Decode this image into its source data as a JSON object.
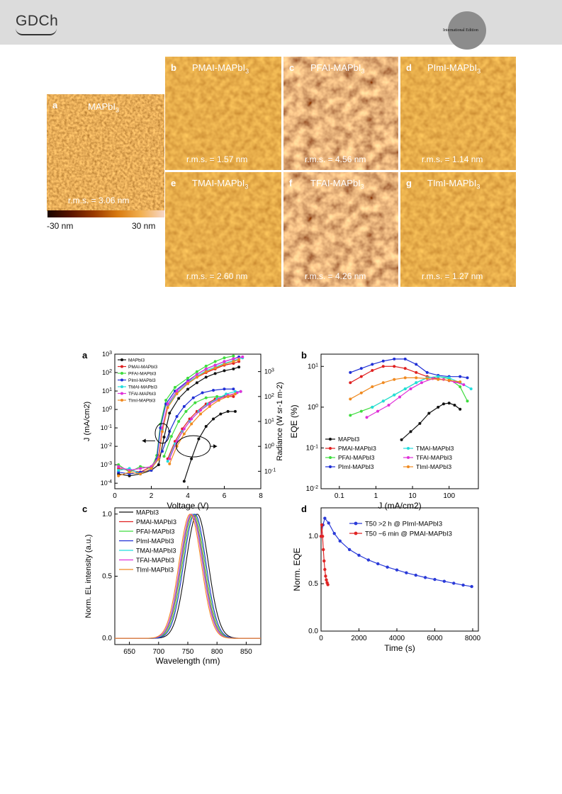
{
  "header": {
    "publisher_logo": "GDCh",
    "edition_badge": "International Edition"
  },
  "afm": {
    "panels": [
      {
        "letter": "a",
        "title": "MAPbI",
        "sub": "3",
        "rms": "r.m.s. = 3.06 nm"
      },
      {
        "letter": "b",
        "title": "PMAI-MAPbI",
        "sub": "3",
        "rms": "r.m.s. = 1.57 nm"
      },
      {
        "letter": "c",
        "title": "PFAI-MAPbI",
        "sub": "3",
        "rms": "r.m.s. = 4.56 nm"
      },
      {
        "letter": "d",
        "title": "PImI-MAPbI",
        "sub": "3",
        "rms": "r.m.s. = 1.14 nm"
      },
      {
        "letter": "e",
        "title": "TMAI-MAPbI",
        "sub": "3",
        "rms": "r.m.s. = 2.60 nm"
      },
      {
        "letter": "f",
        "title": "TFAI-MAPbI",
        "sub": "3",
        "rms": "r.m.s. = 4.26 nm"
      },
      {
        "letter": "g",
        "title": "TImI-MAPbI",
        "sub": "3",
        "rms": "r.m.s. = 1.27 nm"
      }
    ],
    "colorbar": {
      "min_label": "-30 nm",
      "max_label": "30 nm"
    }
  },
  "colors": {
    "MAPbI3": "#111111",
    "PMAI-MAPbI3": "#e02020",
    "PFAI-MAPbI3": "#3ddc3d",
    "PImI-MAPbI3": "#1f2fd6",
    "TMAI-MAPbI3": "#22dddd",
    "TFAI-MAPbI3": "#e030d8",
    "TImI-MAPbI3": "#f08a20"
  },
  "chart_data": [
    {
      "panel": "a",
      "type": "line",
      "xlabel": "Voltage (V)",
      "ylabel": "J (mA/cm2)",
      "y2label": "Radiance (W sr-1 m-2)",
      "xlim": [
        0,
        8
      ],
      "ylim_log": [
        -4.3,
        3
      ],
      "y2lim_log": [
        -1.7,
        3.7
      ],
      "xticks": [
        "0",
        "2",
        "4",
        "6",
        "8"
      ],
      "yticks": [
        "10^-4",
        "10^-3",
        "10^-2",
        "10^-1",
        "10^0",
        "10^1",
        "10^2",
        "10^3"
      ],
      "y2ticks": [
        "10^-1",
        "10^0",
        "10^1",
        "10^2",
        "10^3"
      ],
      "legend": [
        "MAPbI3",
        "PMAI-MAPbI3",
        "PFAI-MAPbI3",
        "PImI-MAPbI3",
        "TMAI-MAPbI3",
        "TFAI-MAPbI3",
        "TImI-MAPbI3"
      ],
      "current_series": [
        {
          "name": "MAPbI3",
          "x": [
            0.2,
            0.8,
            1.4,
            2.0,
            2.4,
            2.7,
            3.0,
            3.5,
            4.0,
            4.5,
            5.0,
            5.5,
            6.0,
            6.5,
            6.8
          ],
          "log_y": [
            -3.5,
            -3.6,
            -3.5,
            -3.3,
            -3.0,
            -1.5,
            -0.2,
            0.6,
            1.1,
            1.45,
            1.75,
            1.95,
            2.1,
            2.2,
            2.3
          ]
        },
        {
          "name": "PMAI-MAPbI3",
          "x": [
            0.2,
            0.8,
            1.4,
            2.0,
            2.4,
            2.6,
            2.9,
            3.4,
            4.0,
            4.5,
            5.0,
            5.5,
            6.0,
            6.5,
            6.8
          ],
          "log_y": [
            -3.2,
            -3.3,
            -3.4,
            -3.1,
            -2.5,
            -1.0,
            0.2,
            0.9,
            1.4,
            1.75,
            2.0,
            2.2,
            2.4,
            2.5,
            2.6
          ]
        },
        {
          "name": "PFAI-MAPbI3",
          "x": [
            0.2,
            0.8,
            1.4,
            2.0,
            2.3,
            2.5,
            2.8,
            3.3,
            4.0,
            4.5,
            5.0,
            5.5,
            6.0,
            6.5
          ],
          "log_y": [
            -3.0,
            -3.4,
            -3.1,
            -3.2,
            -2.5,
            -0.8,
            0.5,
            1.2,
            1.7,
            2.05,
            2.35,
            2.6,
            2.8,
            2.9
          ]
        },
        {
          "name": "PImI-MAPbI3",
          "x": [
            0.2,
            0.8,
            1.4,
            2.0,
            2.3,
            2.5,
            2.8,
            3.3,
            4.0,
            4.5,
            5.0,
            5.5,
            6.0,
            6.5,
            6.8
          ],
          "log_y": [
            -3.4,
            -3.5,
            -3.4,
            -3.3,
            -2.7,
            -1.0,
            0.3,
            1.0,
            1.55,
            1.9,
            2.2,
            2.4,
            2.6,
            2.75,
            2.85
          ]
        },
        {
          "name": "TMAI-MAPbI3",
          "x": [
            0.2,
            0.8,
            1.4,
            2.0,
            2.4,
            2.6,
            2.9,
            3.4,
            4.0,
            4.5,
            5.0,
            5.5,
            6.0,
            6.5,
            7.0
          ],
          "log_y": [
            -3.3,
            -3.2,
            -3.5,
            -3.2,
            -2.6,
            -1.1,
            0.2,
            0.9,
            1.45,
            1.8,
            2.1,
            2.3,
            2.5,
            2.65,
            2.8
          ]
        },
        {
          "name": "TFAI-MAPbI3",
          "x": [
            0.2,
            0.8,
            1.4,
            2.0,
            2.4,
            2.6,
            2.9,
            3.4,
            4.0,
            4.5,
            5.0,
            5.5,
            6.0,
            6.5,
            7.0
          ],
          "log_y": [
            -3.1,
            -3.3,
            -3.2,
            -3.1,
            -2.6,
            -1.0,
            0.3,
            1.0,
            1.5,
            1.9,
            2.2,
            2.4,
            2.6,
            2.75,
            2.85
          ]
        },
        {
          "name": "TImI-MAPbI3",
          "x": [
            0.2,
            0.8,
            1.4,
            2.0,
            2.4,
            2.6,
            2.9,
            3.4,
            4.0,
            4.5,
            5.0,
            5.5,
            6.0,
            6.5,
            6.8
          ],
          "log_y": [
            -3.6,
            -3.4,
            -3.5,
            -3.2,
            -2.7,
            -1.2,
            0.1,
            0.85,
            1.4,
            1.75,
            2.05,
            2.25,
            2.45,
            2.6,
            2.7
          ]
        }
      ],
      "radiance_series": [
        {
          "name": "MAPbI3",
          "x": [
            3.8,
            4.2,
            4.6,
            5.0,
            5.4,
            5.8,
            6.2,
            6.6
          ],
          "log_y": [
            -1.4,
            -0.5,
            0.3,
            0.8,
            1.1,
            1.3,
            1.4,
            1.4
          ]
        },
        {
          "name": "PMAI-MAPbI3",
          "x": [
            2.9,
            3.3,
            3.7,
            4.1,
            4.5,
            5.0,
            5.5,
            6.0,
            6.5
          ],
          "log_y": [
            -0.5,
            0.2,
            0.7,
            1.1,
            1.4,
            1.7,
            1.9,
            2.0,
            2.0
          ]
        },
        {
          "name": "PFAI-MAPbI3",
          "x": [
            2.7,
            3.1,
            3.5,
            3.9,
            4.4,
            5.0,
            5.6,
            6.2
          ],
          "log_y": [
            -0.4,
            0.4,
            1.0,
            1.4,
            1.75,
            1.95,
            2.0,
            2.0
          ]
        },
        {
          "name": "PImI-MAPbI3",
          "x": [
            2.6,
            3.0,
            3.4,
            3.8,
            4.3,
            4.8,
            5.4,
            6.0,
            6.5
          ],
          "log_y": [
            -0.2,
            0.6,
            1.2,
            1.6,
            1.95,
            2.15,
            2.25,
            2.3,
            2.3
          ]
        },
        {
          "name": "TMAI-MAPbI3",
          "x": [
            2.9,
            3.3,
            3.7,
            4.1,
            4.6,
            5.1,
            5.6,
            6.1,
            6.6,
            6.9
          ],
          "log_y": [
            -0.6,
            0.1,
            0.6,
            1.0,
            1.4,
            1.7,
            1.9,
            2.1,
            2.2,
            2.2
          ]
        },
        {
          "name": "TFAI-MAPbI3",
          "x": [
            3.0,
            3.4,
            3.8,
            4.2,
            4.7,
            5.2,
            5.7,
            6.2,
            6.7,
            6.9
          ],
          "log_y": [
            -0.5,
            0.2,
            0.7,
            1.1,
            1.45,
            1.7,
            1.9,
            2.05,
            2.15,
            2.2
          ]
        },
        {
          "name": "TImI-MAPbI3",
          "x": [
            3.0,
            3.4,
            3.8,
            4.2,
            4.7,
            5.2,
            5.7,
            6.2,
            6.6
          ],
          "log_y": [
            -0.7,
            0.0,
            0.5,
            0.9,
            1.3,
            1.6,
            1.85,
            2.0,
            2.1
          ]
        }
      ]
    },
    {
      "panel": "b",
      "type": "line",
      "xlabel": "J (mA/cm2)",
      "ylabel": "EQE (%)",
      "xlim_log": [
        -1.5,
        2.8
      ],
      "ylim_log": [
        -2,
        1.3
      ],
      "xticks": [
        "0.1",
        "1",
        "10",
        "100"
      ],
      "yticks": [
        "10^-2",
        "10^-1",
        "10^0",
        "10^1"
      ],
      "legend": [
        "MAPbI3",
        "PMAI-MAPbI3",
        "PFAI-MAPbI3",
        "PImI-MAPbI3",
        "TMAI-MAPbI3",
        "TFAI-MAPbI3",
        "TImI-MAPbI3"
      ],
      "series": [
        {
          "name": "MAPbI3",
          "log_x": [
            0.7,
            0.95,
            1.2,
            1.45,
            1.7,
            1.85,
            2.0,
            2.15,
            2.3
          ],
          "log_y": [
            -0.8,
            -0.6,
            -0.4,
            -0.15,
            0.0,
            0.08,
            0.1,
            0.05,
            -0.05
          ]
        },
        {
          "name": "PMAI-MAPbI3",
          "log_x": [
            -0.7,
            -0.4,
            -0.1,
            0.2,
            0.5,
            0.8,
            1.1,
            1.4,
            1.7,
            2.0,
            2.3
          ],
          "log_y": [
            0.6,
            0.75,
            0.9,
            1.0,
            1.0,
            0.95,
            0.85,
            0.75,
            0.7,
            0.65,
            0.6
          ]
        },
        {
          "name": "PFAI-MAPbI3",
          "log_x": [
            -0.7,
            -0.4,
            -0.1,
            0.2,
            0.5,
            0.8,
            1.1,
            1.4,
            1.7,
            2.0,
            2.3,
            2.5
          ],
          "log_y": [
            -0.2,
            -0.1,
            0.0,
            0.15,
            0.3,
            0.45,
            0.6,
            0.72,
            0.75,
            0.7,
            0.5,
            0.15
          ]
        },
        {
          "name": "PImI-MAPbI3",
          "log_x": [
            -0.7,
            -0.4,
            -0.1,
            0.2,
            0.5,
            0.8,
            1.1,
            1.4,
            1.7,
            2.0,
            2.3,
            2.5
          ],
          "log_y": [
            0.85,
            0.95,
            1.05,
            1.13,
            1.18,
            1.18,
            1.05,
            0.85,
            0.78,
            0.75,
            0.75,
            0.72
          ]
        },
        {
          "name": "TMAI-MAPbI3",
          "log_x": [
            -0.1,
            0.2,
            0.5,
            0.8,
            1.1,
            1.4,
            1.7,
            2.0,
            2.3,
            2.6
          ],
          "log_y": [
            0.0,
            0.15,
            0.3,
            0.45,
            0.6,
            0.72,
            0.75,
            0.72,
            0.6,
            0.45
          ]
        },
        {
          "name": "TFAI-MAPbI3",
          "log_x": [
            -0.25,
            0.05,
            0.35,
            0.65,
            0.95,
            1.25,
            1.55,
            1.85,
            2.15,
            2.4
          ],
          "log_y": [
            -0.25,
            -0.1,
            0.05,
            0.25,
            0.45,
            0.6,
            0.7,
            0.68,
            0.62,
            0.55
          ]
        },
        {
          "name": "TImI-MAPbI3",
          "log_x": [
            -0.7,
            -0.4,
            -0.1,
            0.2,
            0.5,
            0.8,
            1.1,
            1.4,
            1.7,
            2.0,
            2.3
          ],
          "log_y": [
            0.2,
            0.35,
            0.5,
            0.6,
            0.68,
            0.72,
            0.72,
            0.7,
            0.68,
            0.66,
            0.62
          ]
        }
      ]
    },
    {
      "panel": "c",
      "type": "line",
      "xlabel": "Wavelength (nm)",
      "ylabel": "Norm. EL intensity (a.u.)",
      "xlim": [
        625,
        875
      ],
      "ylim": [
        -0.05,
        1.05
      ],
      "xticks": [
        "650",
        "700",
        "750",
        "800",
        "850"
      ],
      "yticks": [
        "0.0",
        "0.5",
        "1.0"
      ],
      "legend": [
        "MAPbI3",
        "PMAI-MAPbI3",
        "PFAI-MAPbI3",
        "PImI-MAPbI3",
        "TMAI-MAPbI3",
        "TFAI-MAPbI3",
        "TImI-MAPbI3"
      ],
      "peaks_nm": {
        "MAPbI3": 766,
        "PMAI-MAPbI3": 758,
        "PFAI-MAPbI3": 760,
        "PImI-MAPbI3": 762,
        "TMAI-MAPbI3": 757,
        "TFAI-MAPbI3": 756,
        "TImI-MAPbI3": 754
      },
      "fwhm_nm": 45
    },
    {
      "panel": "d",
      "type": "line",
      "xlabel": "Time (s)",
      "ylabel": "Norm. EQE",
      "xlim": [
        0,
        8300
      ],
      "ylim": [
        0,
        1.3
      ],
      "xticks": [
        "0",
        "2000",
        "4000",
        "6000",
        "8000"
      ],
      "yticks": [
        "0.0",
        "0.5",
        "1.0"
      ],
      "legend": [
        "T50 >2 h @ PImI-MAPbI3",
        "T50 ~6 min @ PMAI-MAPbI3"
      ],
      "series": [
        {
          "name": "PImI-MAPbI3",
          "x": [
            0,
            100,
            200,
            400,
            700,
            1000,
            1500,
            2000,
            2500,
            3000,
            3500,
            4000,
            4500,
            5000,
            5500,
            6000,
            6500,
            7000,
            7500,
            7950
          ],
          "y": [
            1.0,
            1.12,
            1.19,
            1.14,
            1.03,
            0.95,
            0.86,
            0.8,
            0.75,
            0.71,
            0.675,
            0.645,
            0.615,
            0.59,
            0.565,
            0.545,
            0.525,
            0.505,
            0.485,
            0.47
          ]
        },
        {
          "name": "PMAI-MAPbI3",
          "x": [
            0,
            40,
            80,
            120,
            160,
            200,
            240,
            280,
            320,
            360
          ],
          "y": [
            1.0,
            1.12,
            1.0,
            0.86,
            0.74,
            0.65,
            0.58,
            0.54,
            0.51,
            0.49
          ]
        }
      ]
    }
  ]
}
